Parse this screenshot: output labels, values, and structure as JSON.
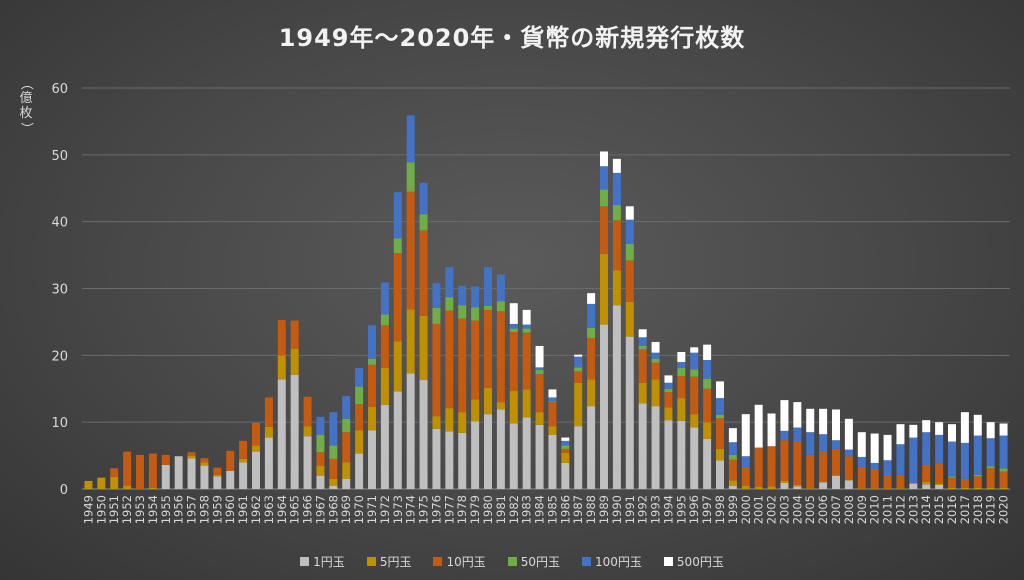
{
  "chart_data": {
    "type": "bar",
    "stacked": true,
    "title": "1949年～2020年・貨幣の新規発行枚数",
    "ylabel": "（億枚）",
    "ylim": [
      0,
      60
    ],
    "yticks": [
      0,
      10,
      20,
      30,
      40,
      50,
      60
    ],
    "grid": true,
    "legend_position": "bottom",
    "categories": [
      "1949",
      "1950",
      "1951",
      "1952",
      "1953",
      "1954",
      "1955",
      "1956",
      "1957",
      "1958",
      "1959",
      "1960",
      "1961",
      "1962",
      "1963",
      "1964",
      "1965",
      "1966",
      "1967",
      "1968",
      "1969",
      "1970",
      "1971",
      "1972",
      "1973",
      "1974",
      "1975",
      "1976",
      "1977",
      "1978",
      "1979",
      "1980",
      "1981",
      "1982",
      "1983",
      "1984",
      "1985",
      "1986",
      "1987",
      "1988",
      "1989",
      "1990",
      "1991",
      "1992",
      "1993",
      "1994",
      "1995",
      "1996",
      "1997",
      "1998",
      "1999",
      "2000",
      "2001",
      "2002",
      "2003",
      "2004",
      "2005",
      "2006",
      "2007",
      "2008",
      "2009",
      "2010",
      "2011",
      "2012",
      "2013",
      "2014",
      "2015",
      "2016",
      "2017",
      "2018",
      "2019",
      "2020"
    ],
    "series": [
      {
        "name": "1円玉",
        "color": "#bfbfbf",
        "values": [
          0,
          0,
          0,
          0,
          0,
          0,
          3.6,
          4.9,
          4.6,
          3.5,
          1.9,
          2.7,
          4.0,
          5.6,
          7.7,
          16.4,
          17.1,
          7.9,
          2.0,
          0.5,
          1.5,
          5.3,
          8.8,
          12.6,
          14.6,
          17.3,
          16.3,
          9.0,
          8.6,
          8.4,
          10.1,
          11.2,
          11.9,
          9.8,
          10.7,
          9.6,
          8.1,
          3.9,
          9.4,
          12.4,
          24.6,
          27.5,
          22.8,
          12.8,
          12.4,
          10.3,
          10.2,
          9.2,
          7.5,
          4.3,
          0.5,
          0,
          0,
          0,
          0.9,
          0.4,
          0,
          1.0,
          2.0,
          1.3,
          0,
          0,
          0,
          0,
          0.8,
          0.7,
          0.6,
          0,
          0,
          0,
          0,
          0
        ]
      },
      {
        "name": "5円玉",
        "color": "#bf9000",
        "values": [
          1.2,
          1.7,
          1.8,
          0.5,
          0,
          0.2,
          0,
          0,
          0.4,
          0.5,
          0.2,
          0,
          0.5,
          0.9,
          1.6,
          3.6,
          3.9,
          1.5,
          1.5,
          1.0,
          2.5,
          3.5,
          3.5,
          5.5,
          7.5,
          9.6,
          9.6,
          1.9,
          3.5,
          3.1,
          3.3,
          3.9,
          1.1,
          4.9,
          4.2,
          1.9,
          1.3,
          1.5,
          6.5,
          4.0,
          10.6,
          5.2,
          5.2,
          3.1,
          4.0,
          1.9,
          3.4,
          2.0,
          2.5,
          1.7,
          0.8,
          0.5,
          0.3,
          0.4,
          0.3,
          0.2,
          0.1,
          0.1,
          0,
          0.1,
          0.1,
          0.1,
          0.1,
          0.1,
          0.1,
          0.4,
          0.2,
          0.2,
          0.2,
          0.2,
          0.2,
          0.2
        ]
      },
      {
        "name": "10円玉",
        "color": "#c55a11",
        "values": [
          0,
          0,
          1.3,
          5.1,
          5.1,
          5.1,
          1.5,
          0,
          0.5,
          0.6,
          1.1,
          3.0,
          2.7,
          3.4,
          4.4,
          5.3,
          4.2,
          4.4,
          2.0,
          3.0,
          4.5,
          3.9,
          6.3,
          6.4,
          13.2,
          17.6,
          12.8,
          13.8,
          14.6,
          14.0,
          11.8,
          11.7,
          13.6,
          8.8,
          8.5,
          5.7,
          3.6,
          0.6,
          1.7,
          6.2,
          7.1,
          7.5,
          6.2,
          5.0,
          2.5,
          2.3,
          3.3,
          5.6,
          5.0,
          4.6,
          3.1,
          2.8,
          5.9,
          6.0,
          6.1,
          6.5,
          5.0,
          4.6,
          4.0,
          3.5,
          3.2,
          2.9,
          2.0,
          2.0,
          0,
          2.5,
          3.0,
          1.5,
          1.3,
          1.7,
          2.9,
          2.4
        ]
      },
      {
        "name": "50円玉",
        "color": "#70ad47",
        "values": [
          0,
          0,
          0,
          0,
          0,
          0,
          0,
          0,
          0,
          0,
          0,
          0,
          0,
          0,
          0,
          0,
          0,
          0,
          2.6,
          2.0,
          2.0,
          2.6,
          0.9,
          1.6,
          2.2,
          4.4,
          2.4,
          2.4,
          2.0,
          2.0,
          2.0,
          0.6,
          1.5,
          0.5,
          0.6,
          0.6,
          0.1,
          0.5,
          0.6,
          1.5,
          2.5,
          2.3,
          2.5,
          0.5,
          0.6,
          0.5,
          1.2,
          1.1,
          1.5,
          0.5,
          0.7,
          0,
          0,
          0,
          0,
          0,
          0,
          0,
          0,
          0,
          0,
          0,
          0,
          0,
          0,
          0,
          0,
          0.2,
          0,
          0.2,
          0.3,
          0.5
        ]
      },
      {
        "name": "100円玉",
        "color": "#4472c4",
        "values": [
          0,
          0,
          0,
          0,
          0,
          0,
          0,
          0,
          0,
          0,
          0,
          0,
          0,
          0,
          0,
          0,
          0,
          0,
          2.7,
          5.0,
          3.4,
          2.8,
          5.0,
          4.8,
          6.9,
          7.0,
          4.7,
          3.7,
          4.5,
          2.9,
          3.1,
          5.8,
          4.0,
          0.7,
          0.6,
          0.4,
          0.6,
          0.7,
          1.6,
          3.6,
          3.5,
          4.8,
          3.6,
          1.3,
          0.9,
          0.9,
          0.9,
          2.5,
          2.8,
          2.5,
          1.9,
          1.6,
          0,
          0,
          1.4,
          2.1,
          3.4,
          2.5,
          1.3,
          1.0,
          1.5,
          0.9,
          2.2,
          4.6,
          6.8,
          4.9,
          4.3,
          5.2,
          5.4,
          5.9,
          4.2,
          4.9
        ]
      },
      {
        "name": "500円玉",
        "color": "#ffffff",
        "values": [
          0,
          0,
          0,
          0,
          0,
          0,
          0,
          0,
          0,
          0,
          0,
          0,
          0,
          0,
          0,
          0,
          0,
          0,
          0,
          0,
          0,
          0,
          0,
          0,
          0,
          0,
          0,
          0,
          0,
          0,
          0,
          0,
          0,
          3.1,
          2.2,
          3.2,
          1.2,
          0.5,
          0.3,
          1.6,
          2.2,
          2.1,
          2.0,
          1.2,
          1.6,
          1.1,
          1.5,
          0.8,
          2.3,
          2.5,
          2.1,
          6.3,
          6.4,
          4.9,
          4.6,
          3.8,
          3.5,
          3.8,
          4.6,
          4.6,
          3.7,
          4.4,
          3.8,
          3.0,
          1.9,
          1.8,
          1.9,
          2.6,
          4.6,
          3.1,
          2.4,
          1.8
        ]
      }
    ]
  }
}
